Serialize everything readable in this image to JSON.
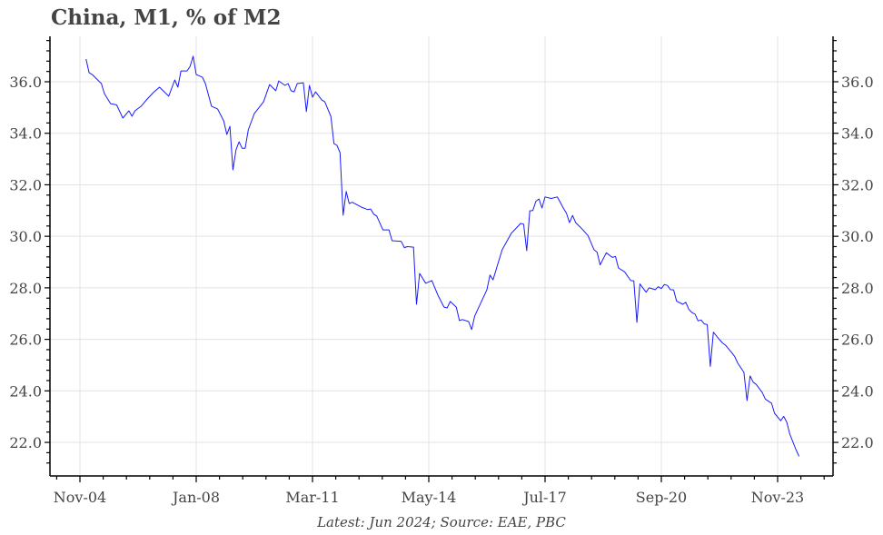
{
  "chart_data": {
    "type": "line",
    "title": "China, M1, % of M2",
    "note": "Latest: Jun 2024; Source: EAE, PBC",
    "xlabel": "",
    "ylabel": "",
    "ylim": [
      21.2,
      37.8
    ],
    "xlim": [
      "2004-05",
      "2024-10"
    ],
    "y_ticks": [
      "22.0",
      "24.0",
      "26.0",
      "28.0",
      "30.0",
      "32.0",
      "34.0",
      "36.0"
    ],
    "x_ticks": [
      {
        "label": "Nov-04",
        "date": "2004-11"
      },
      {
        "label": "Jan-08",
        "date": "2008-01"
      },
      {
        "label": "Mar-11",
        "date": "2011-03"
      },
      {
        "label": "May-14",
        "date": "2014-05"
      },
      {
        "label": "Jul-17",
        "date": "2017-07"
      },
      {
        "label": "Sep-20",
        "date": "2020-09"
      },
      {
        "label": "Nov-23",
        "date": "2023-11"
      }
    ],
    "grid": true,
    "line_color": "#1a1aff",
    "series": [
      {
        "points": [
          [
            "2005-01",
            36.88
          ],
          [
            "2005-02",
            36.35
          ],
          [
            "2005-03",
            36.28
          ],
          [
            "2005-06",
            35.93
          ],
          [
            "2005-07",
            35.54
          ],
          [
            "2005-09",
            35.15
          ],
          [
            "2005-11",
            35.1
          ],
          [
            "2006-01",
            34.59
          ],
          [
            "2006-03",
            34.87
          ],
          [
            "2006-04",
            34.66
          ],
          [
            "2006-05",
            34.87
          ],
          [
            "2006-07",
            35.05
          ],
          [
            "2006-09",
            35.33
          ],
          [
            "2006-11",
            35.58
          ],
          [
            "2007-01",
            35.79
          ],
          [
            "2007-04",
            35.44
          ],
          [
            "2007-06",
            36.07
          ],
          [
            "2007-07",
            35.79
          ],
          [
            "2007-08",
            36.42
          ],
          [
            "2007-10",
            36.42
          ],
          [
            "2007-11",
            36.6
          ],
          [
            "2007-12",
            36.99
          ],
          [
            "2008-01",
            36.28
          ],
          [
            "2008-03",
            36.18
          ],
          [
            "2008-04",
            35.93
          ],
          [
            "2008-06",
            35.05
          ],
          [
            "2008-08",
            34.94
          ],
          [
            "2008-10",
            34.48
          ],
          [
            "2008-11",
            33.95
          ],
          [
            "2008-12",
            34.27
          ],
          [
            "2009-01",
            32.58
          ],
          [
            "2009-02",
            33.36
          ],
          [
            "2009-03",
            33.67
          ],
          [
            "2009-04",
            33.42
          ],
          [
            "2009-05",
            33.42
          ],
          [
            "2009-06",
            34.13
          ],
          [
            "2009-08",
            34.77
          ],
          [
            "2009-11",
            35.22
          ],
          [
            "2010-01",
            35.89
          ],
          [
            "2010-03",
            35.65
          ],
          [
            "2010-04",
            36.03
          ],
          [
            "2010-06",
            35.86
          ],
          [
            "2010-07",
            35.93
          ],
          [
            "2010-08",
            35.65
          ],
          [
            "2010-09",
            35.61
          ],
          [
            "2010-10",
            35.93
          ],
          [
            "2010-12",
            35.96
          ],
          [
            "2011-01",
            34.84
          ],
          [
            "2011-02",
            35.86
          ],
          [
            "2011-03",
            35.4
          ],
          [
            "2011-04",
            35.61
          ],
          [
            "2011-06",
            35.3
          ],
          [
            "2011-07",
            35.22
          ],
          [
            "2011-09",
            34.66
          ],
          [
            "2011-10",
            33.6
          ],
          [
            "2011-11",
            33.53
          ],
          [
            "2011-12",
            33.25
          ],
          [
            "2012-01",
            30.82
          ],
          [
            "2012-02",
            31.74
          ],
          [
            "2012-03",
            31.27
          ],
          [
            "2012-04",
            31.32
          ],
          [
            "2012-07",
            31.13
          ],
          [
            "2012-09",
            31.04
          ],
          [
            "2012-10",
            31.06
          ],
          [
            "2012-11",
            30.86
          ],
          [
            "2012-12",
            30.79
          ],
          [
            "2013-02",
            30.25
          ],
          [
            "2013-04",
            30.25
          ],
          [
            "2013-05",
            29.83
          ],
          [
            "2013-08",
            29.8
          ],
          [
            "2013-09",
            29.56
          ],
          [
            "2013-10",
            29.6
          ],
          [
            "2013-12",
            29.58
          ],
          [
            "2014-01",
            27.36
          ],
          [
            "2014-02",
            28.56
          ],
          [
            "2014-04",
            28.18
          ],
          [
            "2014-06",
            28.28
          ],
          [
            "2014-08",
            27.71
          ],
          [
            "2014-10",
            27.25
          ],
          [
            "2014-11",
            27.22
          ],
          [
            "2014-12",
            27.47
          ],
          [
            "2015-02",
            27.25
          ],
          [
            "2015-03",
            26.73
          ],
          [
            "2015-04",
            26.77
          ],
          [
            "2015-06",
            26.69
          ],
          [
            "2015-07",
            26.38
          ],
          [
            "2015-08",
            26.9
          ],
          [
            "2015-12",
            27.93
          ],
          [
            "2016-01",
            28.5
          ],
          [
            "2016-02",
            28.31
          ],
          [
            "2016-05",
            29.48
          ],
          [
            "2016-08",
            30.12
          ],
          [
            "2016-11",
            30.5
          ],
          [
            "2016-12",
            30.47
          ],
          [
            "2017-01",
            29.44
          ],
          [
            "2017-02",
            30.99
          ],
          [
            "2017-03",
            31.0
          ],
          [
            "2017-04",
            31.36
          ],
          [
            "2017-05",
            31.45
          ],
          [
            "2017-06",
            31.1
          ],
          [
            "2017-07",
            31.53
          ],
          [
            "2017-09",
            31.47
          ],
          [
            "2017-11",
            31.53
          ],
          [
            "2018-01",
            31.09
          ],
          [
            "2018-02",
            30.89
          ],
          [
            "2018-03",
            30.53
          ],
          [
            "2018-04",
            30.81
          ],
          [
            "2018-05",
            30.53
          ],
          [
            "2018-07",
            30.3
          ],
          [
            "2018-09",
            30.03
          ],
          [
            "2018-11",
            29.48
          ],
          [
            "2018-12",
            29.38
          ],
          [
            "2019-01",
            28.89
          ],
          [
            "2019-03",
            29.36
          ],
          [
            "2019-05",
            29.18
          ],
          [
            "2019-06",
            29.22
          ],
          [
            "2019-07",
            28.77
          ],
          [
            "2019-09",
            28.62
          ],
          [
            "2019-11",
            28.28
          ],
          [
            "2019-12",
            28.27
          ],
          [
            "2020-01",
            26.66
          ],
          [
            "2020-02",
            28.15
          ],
          [
            "2020-04",
            27.83
          ],
          [
            "2020-05",
            28.0
          ],
          [
            "2020-07",
            27.93
          ],
          [
            "2020-08",
            28.04
          ],
          [
            "2020-09",
            27.97
          ],
          [
            "2020-10",
            28.13
          ],
          [
            "2020-11",
            28.09
          ],
          [
            "2020-12",
            27.93
          ],
          [
            "2021-01",
            27.92
          ],
          [
            "2021-02",
            27.48
          ],
          [
            "2021-04",
            27.36
          ],
          [
            "2021-05",
            27.44
          ],
          [
            "2021-06",
            27.16
          ],
          [
            "2021-07",
            27.04
          ],
          [
            "2021-08",
            26.98
          ],
          [
            "2021-09",
            26.72
          ],
          [
            "2021-10",
            26.75
          ],
          [
            "2021-11",
            26.6
          ],
          [
            "2021-12",
            26.57
          ],
          [
            "2022-01",
            24.95
          ],
          [
            "2022-02",
            26.28
          ],
          [
            "2022-04",
            25.99
          ],
          [
            "2022-05",
            25.86
          ],
          [
            "2022-06",
            25.77
          ],
          [
            "2022-08",
            25.48
          ],
          [
            "2022-09",
            25.33
          ],
          [
            "2022-10",
            25.07
          ],
          [
            "2022-12",
            24.72
          ],
          [
            "2023-01",
            23.62
          ],
          [
            "2023-02",
            24.58
          ],
          [
            "2023-03",
            24.34
          ],
          [
            "2023-04",
            24.25
          ],
          [
            "2023-06",
            23.93
          ],
          [
            "2023-07",
            23.68
          ],
          [
            "2023-09",
            23.52
          ],
          [
            "2023-10",
            23.13
          ],
          [
            "2023-12",
            22.84
          ],
          [
            "2024-01",
            23.01
          ],
          [
            "2024-02",
            22.78
          ],
          [
            "2024-03",
            22.31
          ],
          [
            "2024-05",
            21.72
          ],
          [
            "2024-06",
            21.46
          ]
        ]
      }
    ]
  }
}
